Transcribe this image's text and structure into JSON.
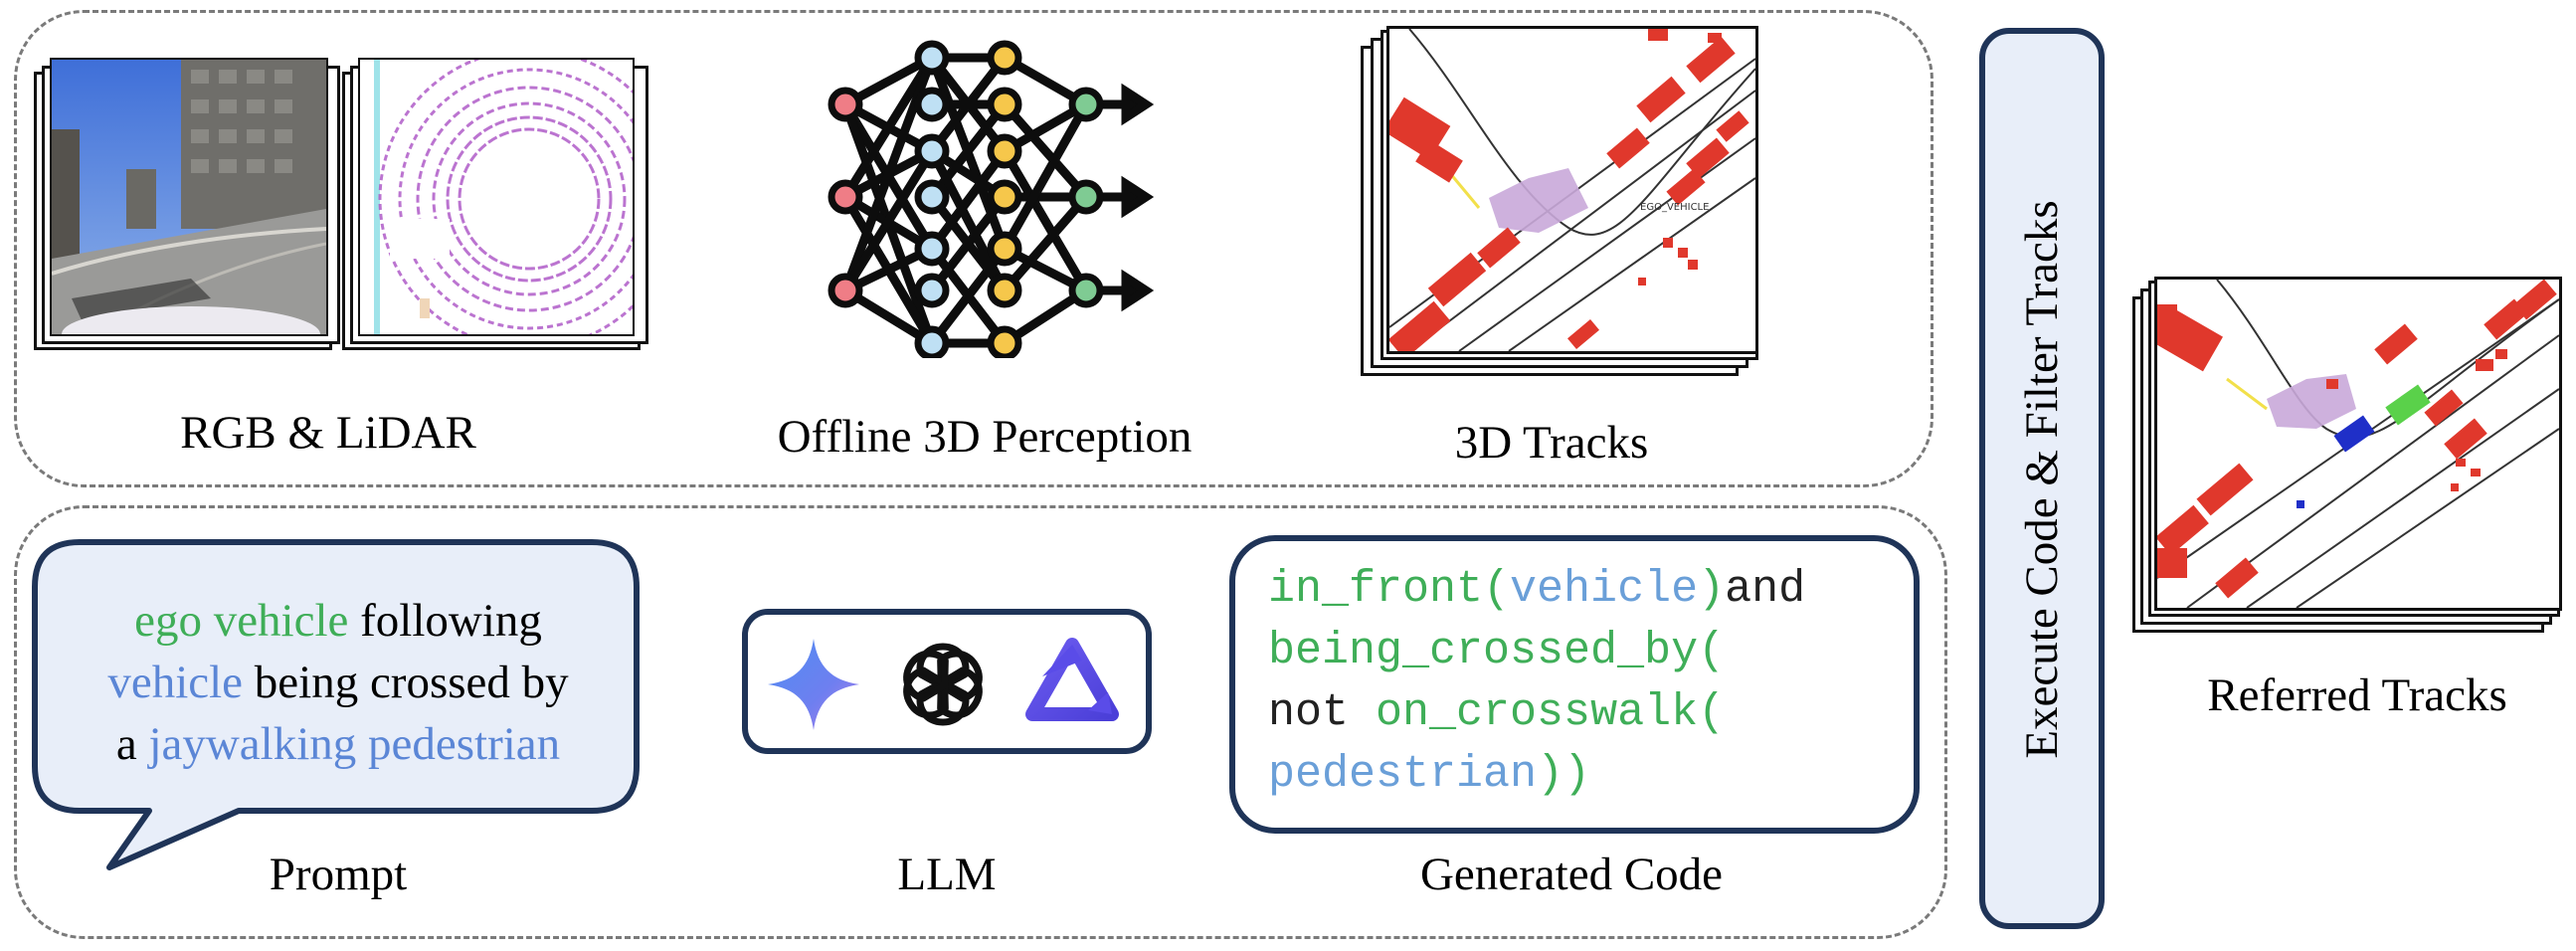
{
  "colors": {
    "green_text": "#3fae58",
    "blue_text": "#5b86d6",
    "code_blue": "#6a9fd8",
    "panel_border": "#7a7a7a",
    "box_border": "#1f3458",
    "bubble_fill": "#e8eef9",
    "track_red": "#e0382c",
    "ego_purple": "#c9a8d9",
    "referred_blue": "#1f2fc8",
    "referred_green": "#5ad14a"
  },
  "top": {
    "captions": {
      "rgb_lidar": "RGB & LiDAR",
      "perception": "Offline 3D Perception",
      "tracks": "3D Tracks"
    },
    "tracks_label": "EGO_VEHICLE"
  },
  "bottom": {
    "prompt": {
      "line1_green": "ego vehicle",
      "line1_rest": " following",
      "line2_blue": "vehicle",
      "line2_rest": " being crossed by",
      "line3_pre": "a ",
      "line3_blue": "jaywalking pedestrian"
    },
    "captions": {
      "prompt": "Prompt",
      "llm": "LLM",
      "code": "Generated Code"
    },
    "llm_icons": [
      "gemini-icon",
      "openai-icon",
      "qwen-icon"
    ],
    "code": {
      "l1_a": "in_front(",
      "l1_b": "vehicle",
      "l1_c": ")",
      "l1_d": "and",
      "l2": "being_crossed_by(",
      "l3_a": "not ",
      "l3_b": "on_crosswalk(",
      "l4_a": "pedestrian",
      "l4_b": "))"
    }
  },
  "side": {
    "execute_label": "Execute Code & Filter Tracks",
    "referred_caption": "Referred Tracks"
  }
}
